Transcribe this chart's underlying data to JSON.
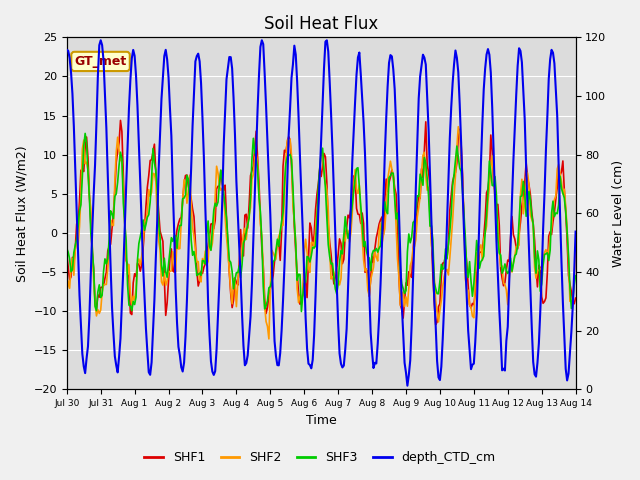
{
  "title": "Soil Heat Flux",
  "xlabel": "Time",
  "ylabel_left": "Soil Heat Flux (W/m2)",
  "ylabel_right": "Water Level (cm)",
  "ylim_left": [
    -20,
    25
  ],
  "ylim_right": [
    0,
    120
  ],
  "yticks_left": [
    -20,
    -15,
    -10,
    -5,
    0,
    5,
    10,
    15,
    20,
    25
  ],
  "yticks_right": [
    0,
    20,
    40,
    60,
    80,
    100,
    120
  ],
  "xtick_labels": [
    "Jul 30",
    "Jul 31",
    "Aug 1",
    "Aug 2",
    "Aug 3",
    "Aug 4",
    "Aug 5",
    "Aug 6",
    "Aug 7",
    "Aug 8",
    "Aug 9",
    "Aug 10",
    "Aug 11",
    "Aug 12",
    "Aug 13",
    "Aug 14"
  ],
  "colors": {
    "SHF1": "#dd0000",
    "SHF2": "#ff9900",
    "SHF3": "#00cc00",
    "depth_CTD_cm": "#0000ee"
  },
  "legend_label": "GT_met",
  "legend_bg": "#ffffcc",
  "legend_border": "#cc9900",
  "plot_bg": "#dcdcdc",
  "linewidth_shf": 1.2,
  "linewidth_ctd": 1.5,
  "title_fontsize": 12,
  "label_fontsize": 9,
  "tick_fontsize": 8,
  "legend_fontsize": 9
}
